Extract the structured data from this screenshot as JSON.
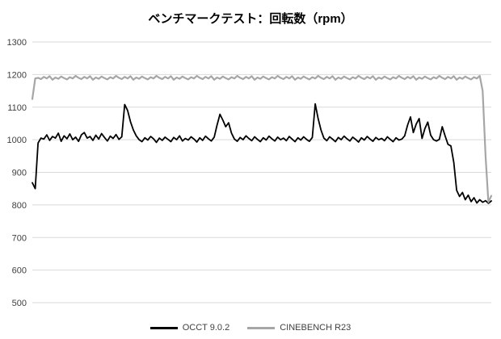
{
  "title": "ベンチマークテスト：回転数（rpm）",
  "chart_data": {
    "type": "line",
    "title": "ベンチマークテスト：回転数（rpm）",
    "xlabel": "",
    "ylabel": "",
    "ylim": [
      500,
      1300
    ],
    "yticks": [
      500,
      600,
      700,
      800,
      900,
      1000,
      1100,
      1200,
      1300
    ],
    "grid": true,
    "grid_color": "#d9d9d9",
    "legend_position": "bottom",
    "series": [
      {
        "name": "OCCT 9.0.2",
        "color": "#000000",
        "stroke_width": 1.8,
        "values": [
          868,
          850,
          990,
          1005,
          1002,
          1015,
          998,
          1010,
          1005,
          1020,
          995,
          1012,
          1003,
          1018,
          1000,
          1008,
          995,
          1015,
          1022,
          1005,
          1010,
          998,
          1014,
          1002,
          1019,
          1007,
          996,
          1011,
          1004,
          1016,
          1001,
          1009,
          1108,
          1090,
          1055,
          1030,
          1012,
          1000,
          994,
          1006,
          999,
          1010,
          1003,
          992,
          1005,
          998,
          1008,
          1001,
          994,
          1007,
          1000,
          1012,
          996,
          1004,
          999,
          1009,
          1002,
          993,
          1006,
          998,
          1011,
          1003,
          996,
          1008,
          1045,
          1078,
          1060,
          1040,
          1052,
          1020,
          1002,
          995,
          1007,
          1000,
          1012,
          1004,
          997,
          1009,
          1001,
          994,
          1006,
          999,
          1011,
          1003,
          996,
          1008,
          1000,
          1005,
          997,
          1010,
          1002,
          994,
          1006,
          999,
          1009,
          1001,
          995,
          1007,
          1110,
          1065,
          1030,
          1005,
          997,
          1009,
          1002,
          994,
          1007,
          1000,
          1011,
          1003,
          996,
          1008,
          1001,
          993,
          1006,
          999,
          1010,
          1002,
          995,
          1007,
          1000,
          1004,
          997,
          1009,
          1001,
          994,
          1006,
          999,
          1002,
          1012,
          1045,
          1070,
          1022,
          1048,
          1065,
          1004,
          1034,
          1054,
          1014,
          1000,
          996,
          1001,
          1040,
          1012,
          986,
          981,
          930,
          845,
          826,
          838,
          816,
          830,
          810,
          822,
          806,
          816,
          808,
          813,
          805,
          812
        ]
      },
      {
        "name": "CINEBENCH R23",
        "color": "#a6a6a6",
        "stroke_width": 2.2,
        "values": [
          1125,
          1188,
          1190,
          1186,
          1193,
          1188,
          1195,
          1184,
          1191,
          1187,
          1194,
          1189,
          1185,
          1192,
          1188,
          1196,
          1190,
          1186,
          1193,
          1188,
          1195,
          1184,
          1191,
          1187,
          1194,
          1189,
          1185,
          1192,
          1188,
          1196,
          1190,
          1186,
          1193,
          1188,
          1195,
          1184,
          1191,
          1187,
          1194,
          1189,
          1185,
          1192,
          1188,
          1196,
          1190,
          1186,
          1193,
          1188,
          1195,
          1184,
          1191,
          1187,
          1194,
          1189,
          1185,
          1192,
          1188,
          1196,
          1190,
          1186,
          1193,
          1188,
          1195,
          1184,
          1191,
          1187,
          1194,
          1189,
          1185,
          1192,
          1188,
          1196,
          1190,
          1186,
          1193,
          1188,
          1195,
          1184,
          1191,
          1187,
          1194,
          1189,
          1185,
          1192,
          1188,
          1196,
          1190,
          1186,
          1193,
          1188,
          1195,
          1184,
          1191,
          1187,
          1194,
          1189,
          1185,
          1192,
          1188,
          1196,
          1190,
          1186,
          1193,
          1188,
          1195,
          1184,
          1191,
          1187,
          1194,
          1189,
          1185,
          1192,
          1188,
          1196,
          1190,
          1186,
          1193,
          1188,
          1195,
          1184,
          1191,
          1187,
          1194,
          1189,
          1185,
          1192,
          1188,
          1196,
          1190,
          1186,
          1193,
          1188,
          1195,
          1184,
          1191,
          1187,
          1194,
          1189,
          1185,
          1192,
          1188,
          1196,
          1190,
          1186,
          1193,
          1188,
          1195,
          1184,
          1191,
          1187,
          1194,
          1189,
          1185,
          1192,
          1188,
          1196,
          1150,
          950,
          808,
          828
        ]
      }
    ]
  },
  "legend": {
    "items": [
      "OCCT 9.0.2",
      "CINEBENCH R23"
    ]
  }
}
